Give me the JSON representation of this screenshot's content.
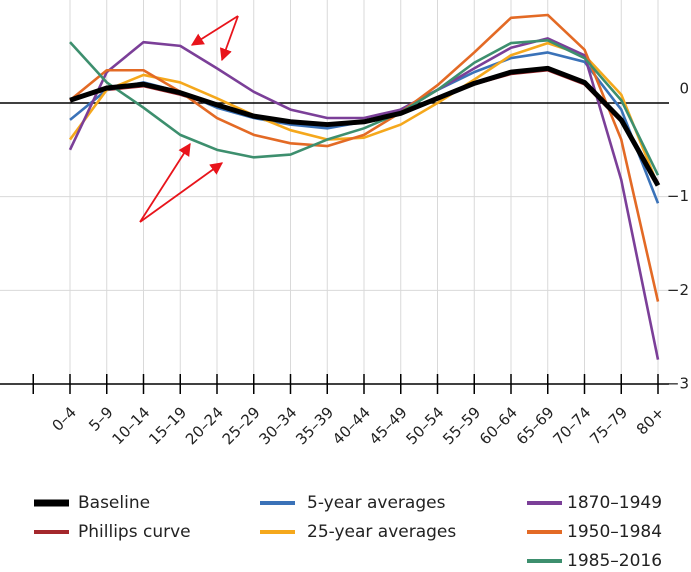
{
  "chart_data": {
    "type": "line",
    "categories": [
      "0–4",
      "5–9",
      "10–14",
      "15–19",
      "20–24",
      "25–29",
      "30–34",
      "35–39",
      "40–44",
      "45–49",
      "50–54",
      "55–59",
      "60–64",
      "65–69",
      "70–74",
      "75–79",
      "80+"
    ],
    "ylim": [
      -3,
      1.1
    ],
    "yticks": [
      {
        "value": 0,
        "label": "0"
      },
      {
        "value": -1,
        "label": "−1"
      },
      {
        "value": -2,
        "label": "−2"
      },
      {
        "value": -3,
        "label": "−3"
      }
    ],
    "grid": true,
    "series": [
      {
        "name": "Baseline",
        "color": "#000000",
        "values": [
          0.03,
          0.16,
          0.2,
          0.11,
          -0.02,
          -0.14,
          -0.2,
          -0.23,
          -0.2,
          -0.11,
          0.05,
          0.21,
          0.33,
          0.37,
          0.22,
          -0.18,
          -0.88
        ]
      },
      {
        "name": "Phillips curve",
        "color": "#a4282c",
        "values": [
          0.03,
          0.14,
          0.18,
          0.09,
          -0.03,
          -0.15,
          -0.21,
          -0.24,
          -0.21,
          -0.12,
          0.04,
          0.2,
          0.31,
          0.35,
          0.2,
          -0.2,
          -0.85
        ]
      },
      {
        "name": "5-year averages",
        "color": "#3a72b8",
        "values": [
          -0.18,
          0.14,
          0.22,
          0.12,
          -0.05,
          -0.16,
          -0.23,
          -0.27,
          -0.2,
          -0.07,
          0.14,
          0.33,
          0.48,
          0.54,
          0.44,
          -0.07,
          -1.07
        ]
      },
      {
        "name": "25-year averages",
        "color": "#f5a81c",
        "values": [
          -0.39,
          0.14,
          0.3,
          0.22,
          0.05,
          -0.13,
          -0.29,
          -0.39,
          -0.37,
          -0.23,
          0,
          0.25,
          0.51,
          0.64,
          0.51,
          0.09,
          -0.88
        ]
      },
      {
        "name": "1870–1949",
        "color": "#7b3f98",
        "values": [
          -0.5,
          0.33,
          0.65,
          0.61,
          0.37,
          0.12,
          -0.07,
          -0.16,
          -0.16,
          -0.07,
          0.14,
          0.37,
          0.59,
          0.69,
          0.51,
          -0.82,
          -2.74
        ]
      },
      {
        "name": "1950–1984",
        "color": "#e36a25",
        "values": [
          0.03,
          0.35,
          0.35,
          0.12,
          -0.16,
          -0.34,
          -0.43,
          -0.46,
          -0.34,
          -0.1,
          0.19,
          0.54,
          0.91,
          0.94,
          0.57,
          -0.39,
          -2.12
        ]
      },
      {
        "name": "1985–2016",
        "color": "#3d8f6e",
        "values": [
          0.65,
          0.22,
          -0.05,
          -0.34,
          -0.5,
          -0.58,
          -0.55,
          -0.39,
          -0.27,
          -0.1,
          0.14,
          0.43,
          0.64,
          0.67,
          0.48,
          0.03,
          -0.77
        ]
      }
    ]
  }
}
